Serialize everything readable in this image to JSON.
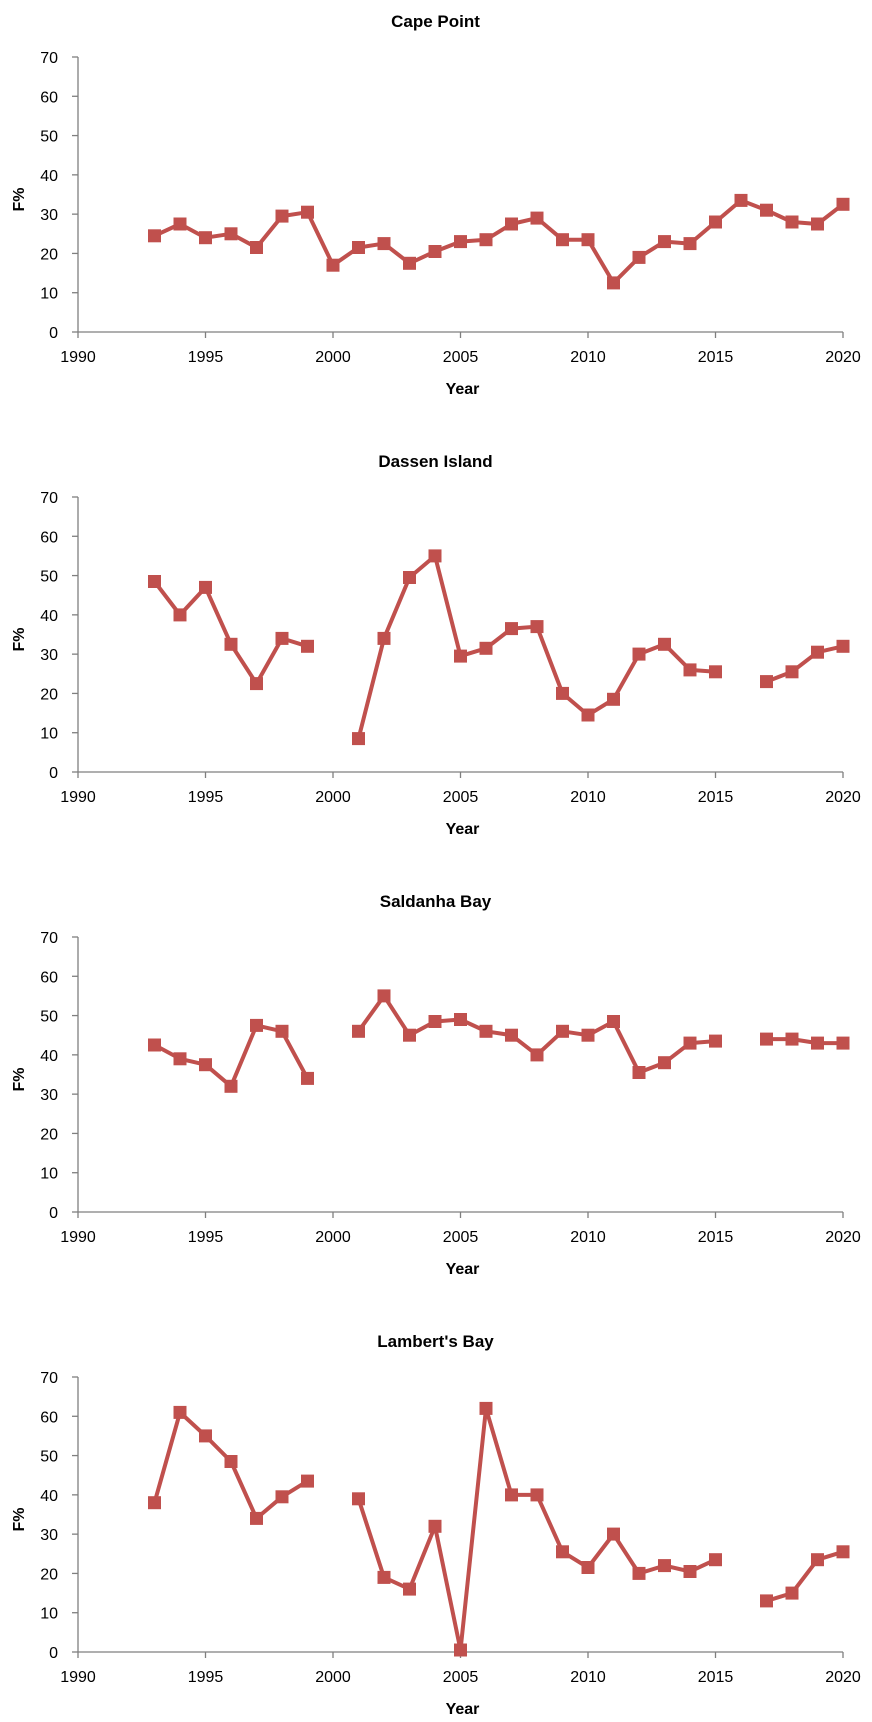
{
  "colors": {
    "series": "#c0504d",
    "axis": "#7f7f7f"
  },
  "chart_data": [
    {
      "type": "line",
      "title": "Cape Point",
      "xlabel": "Year",
      "ylabel": "F%",
      "xlim": [
        1990,
        2020
      ],
      "ylim": [
        0,
        70
      ],
      "xticks": [
        1990,
        1995,
        2000,
        2005,
        2010,
        2015,
        2020
      ],
      "yticks": [
        0,
        10,
        20,
        30,
        40,
        50,
        60,
        70
      ],
      "marker": "square",
      "grid": false,
      "x": [
        1993,
        1994,
        1995,
        1996,
        1997,
        1998,
        1999,
        2000,
        2001,
        2002,
        2003,
        2004,
        2005,
        2006,
        2007,
        2008,
        2009,
        2010,
        2011,
        2012,
        2013,
        2014,
        2015,
        2016,
        2017,
        2018,
        2019,
        2020
      ],
      "values": [
        24.5,
        27.5,
        24,
        25,
        21.5,
        29.5,
        30.5,
        17,
        21.5,
        22.5,
        17.5,
        20.5,
        23,
        23.5,
        27.5,
        29,
        23.5,
        23.5,
        12.5,
        19,
        23,
        22.5,
        28,
        33.5,
        31,
        28,
        27.5,
        32.5
      ]
    },
    {
      "type": "line",
      "title": "Dassen Island",
      "xlabel": "Year",
      "ylabel": "F%",
      "xlim": [
        1990,
        2020
      ],
      "ylim": [
        0,
        70
      ],
      "xticks": [
        1990,
        1995,
        2000,
        2005,
        2010,
        2015,
        2020
      ],
      "yticks": [
        0,
        10,
        20,
        30,
        40,
        50,
        60,
        70
      ],
      "marker": "square",
      "grid": false,
      "x": [
        1993,
        1994,
        1995,
        1996,
        1997,
        1998,
        1999,
        2000,
        2001,
        2002,
        2003,
        2004,
        2005,
        2006,
        2007,
        2008,
        2009,
        2010,
        2011,
        2012,
        2013,
        2014,
        2015,
        2016,
        2017,
        2018,
        2019,
        2020
      ],
      "values": [
        48.5,
        40,
        47,
        32.5,
        22.5,
        34,
        32,
        null,
        8.5,
        34,
        49.5,
        55,
        29.5,
        31.5,
        36.5,
        37,
        20,
        14.5,
        18.5,
        30,
        32.5,
        26,
        25.5,
        null,
        23,
        25.5,
        30.5,
        32
      ]
    },
    {
      "type": "line",
      "title": "Saldanha Bay",
      "xlabel": "Year",
      "ylabel": "F%",
      "xlim": [
        1990,
        2020
      ],
      "ylim": [
        0,
        70
      ],
      "xticks": [
        1990,
        1995,
        2000,
        2005,
        2010,
        2015,
        2020
      ],
      "yticks": [
        0,
        10,
        20,
        30,
        40,
        50,
        60,
        70
      ],
      "marker": "square",
      "grid": false,
      "x": [
        1993,
        1994,
        1995,
        1996,
        1997,
        1998,
        1999,
        2000,
        2001,
        2002,
        2003,
        2004,
        2005,
        2006,
        2007,
        2008,
        2009,
        2010,
        2011,
        2012,
        2013,
        2014,
        2015,
        2016,
        2017,
        2018,
        2019,
        2020
      ],
      "values": [
        42.5,
        39,
        37.5,
        32,
        47.5,
        46,
        34,
        null,
        46,
        55,
        45,
        48.5,
        49,
        46,
        45,
        40,
        46,
        45,
        48.5,
        35.5,
        38,
        43,
        43.5,
        null,
        44,
        44,
        43,
        43
      ]
    },
    {
      "type": "line",
      "title": "Lambert's Bay",
      "xlabel": "Year",
      "ylabel": "F%",
      "xlim": [
        1990,
        2020
      ],
      "ylim": [
        0,
        70
      ],
      "xticks": [
        1990,
        1995,
        2000,
        2005,
        2010,
        2015,
        2020
      ],
      "yticks": [
        0,
        10,
        20,
        30,
        40,
        50,
        60,
        70
      ],
      "marker": "square",
      "grid": false,
      "x": [
        1993,
        1994,
        1995,
        1996,
        1997,
        1998,
        1999,
        2000,
        2001,
        2002,
        2003,
        2004,
        2005,
        2006,
        2007,
        2008,
        2009,
        2010,
        2011,
        2012,
        2013,
        2014,
        2015,
        2016,
        2017,
        2018,
        2019,
        2020
      ],
      "values": [
        38,
        61,
        55,
        48.5,
        34,
        39.5,
        43.5,
        null,
        39,
        19,
        16,
        32,
        0.5,
        62,
        40,
        40,
        25.5,
        21.5,
        30,
        20,
        22,
        20.5,
        23.5,
        null,
        13,
        15,
        23.5,
        25.5
      ]
    }
  ]
}
